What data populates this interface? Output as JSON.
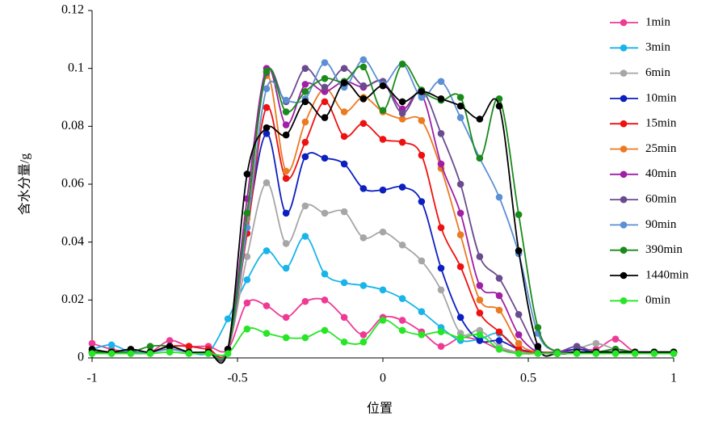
{
  "chart_data": {
    "type": "line",
    "xlabel": "位置",
    "ylabel": "含水分量/g",
    "xlim": [
      -1,
      1
    ],
    "xticks": [
      -1,
      -0.5,
      0,
      0.5,
      1
    ],
    "ylim": [
      0,
      0.12
    ],
    "yticks": [
      0,
      0.02,
      0.04,
      0.06,
      0.08,
      0.1,
      0.12
    ],
    "grid": false,
    "legend": "right",
    "smooth": true,
    "markers": true,
    "x": [
      -1,
      -0.933,
      -0.867,
      -0.8,
      -0.733,
      -0.667,
      -0.6,
      -0.533,
      -0.467,
      -0.4,
      -0.333,
      -0.267,
      -0.2,
      -0.133,
      -0.067,
      0,
      0.067,
      0.133,
      0.2,
      0.267,
      0.333,
      0.4,
      0.467,
      0.533,
      0.6,
      0.667,
      0.733,
      0.8,
      0.867,
      0.933,
      1
    ],
    "series": [
      {
        "name": "1min",
        "color": "#ee3a95",
        "values": [
          0.005,
          0.003,
          0.002,
          0.002,
          0.006,
          0.004,
          0.004,
          0.003,
          0.019,
          0.018,
          0.014,
          0.0195,
          0.02,
          0.014,
          0.008,
          0.014,
          0.013,
          0.009,
          0.004,
          0.007,
          0.006,
          0.003,
          0.002,
          0.002,
          0.002,
          0.003,
          0.003,
          0.0065,
          0.002,
          0.002,
          0.002
        ]
      },
      {
        "name": "3min",
        "color": "#18b4ea",
        "values": [
          0.003,
          0.0045,
          0.002,
          0.002,
          0.003,
          0.002,
          0.002,
          0.0135,
          0.027,
          0.037,
          0.031,
          0.042,
          0.029,
          0.026,
          0.025,
          0.0235,
          0.0205,
          0.016,
          0.0105,
          0.006,
          0.0065,
          0.0085,
          0.003,
          0.002,
          0.002,
          0.002,
          0.002,
          0.002,
          0.002,
          0.002,
          0.0015
        ]
      },
      {
        "name": "6min",
        "color": "#a6a6a6",
        "values": [
          0.002,
          0.002,
          0.002,
          0.002,
          0.003,
          0.002,
          0.002,
          0.003,
          0.035,
          0.0605,
          0.0395,
          0.0525,
          0.05,
          0.0505,
          0.0415,
          0.0435,
          0.039,
          0.0335,
          0.0235,
          0.0085,
          0.0095,
          0.004,
          0.002,
          0.002,
          0.002,
          0.003,
          0.005,
          0.003,
          0.002,
          0.002,
          0.002
        ]
      },
      {
        "name": "10min",
        "color": "#0c1fc0",
        "values": [
          0.002,
          0.002,
          0.002,
          0.002,
          0.003,
          0.002,
          0.002,
          0.003,
          0.045,
          0.0775,
          0.05,
          0.0695,
          0.069,
          0.067,
          0.0585,
          0.058,
          0.059,
          0.054,
          0.031,
          0.014,
          0.006,
          0.006,
          0.003,
          0.002,
          0.002,
          0.003,
          0.002,
          0.002,
          0.002,
          0.002,
          0.002
        ]
      },
      {
        "name": "15min",
        "color": "#ee1111",
        "values": [
          0.002,
          0.002,
          0.002,
          0.002,
          0.004,
          0.004,
          0.003,
          0.003,
          0.043,
          0.0865,
          0.062,
          0.0745,
          0.0885,
          0.0765,
          0.081,
          0.0755,
          0.0745,
          0.07,
          0.045,
          0.0315,
          0.0155,
          0.009,
          0.003,
          0.002,
          0.002,
          0.002,
          0.002,
          0.002,
          0.002,
          0.002,
          0.002
        ]
      },
      {
        "name": "25min",
        "color": "#eb7a22",
        "values": [
          0.002,
          0.002,
          0.002,
          0.002,
          0.003,
          0.002,
          0.002,
          0.003,
          0.048,
          0.0975,
          0.0645,
          0.0815,
          0.093,
          0.085,
          0.09,
          0.085,
          0.0825,
          0.082,
          0.0655,
          0.0425,
          0.02,
          0.0165,
          0.005,
          0.002,
          0.002,
          0.002,
          0.002,
          0.002,
          0.002,
          0.002,
          0.002
        ]
      },
      {
        "name": "40min",
        "color": "#a01fa5",
        "values": [
          0.002,
          0.002,
          0.002,
          0.002,
          0.003,
          0.002,
          0.002,
          0.003,
          0.055,
          0.1,
          0.0805,
          0.0945,
          0.092,
          0.0955,
          0.0935,
          0.0955,
          0.086,
          0.091,
          0.067,
          0.05,
          0.025,
          0.0215,
          0.008,
          0.002,
          0.002,
          0.002,
          0.002,
          0.002,
          0.002,
          0.002,
          0.002
        ]
      },
      {
        "name": "60min",
        "color": "#6b4b8f",
        "values": [
          0.002,
          0.002,
          0.002,
          0.002,
          0.003,
          0.002,
          0.002,
          0.003,
          0.05,
          0.0985,
          0.0885,
          0.1,
          0.0935,
          0.1,
          0.094,
          0.0955,
          0.0845,
          0.0925,
          0.0775,
          0.06,
          0.035,
          0.0275,
          0.015,
          0.003,
          0.002,
          0.004,
          0.002,
          0.003,
          0.002,
          0.002,
          0.002
        ]
      },
      {
        "name": "90min",
        "color": "#5b8fd6",
        "values": [
          0.002,
          0.002,
          0.002,
          0.002,
          0.003,
          0.002,
          0.002,
          0.003,
          0.045,
          0.093,
          0.089,
          0.0895,
          0.102,
          0.0935,
          0.103,
          0.0945,
          0.1015,
          0.09,
          0.0955,
          0.083,
          0.069,
          0.0555,
          0.036,
          0.0085,
          0.002,
          0.002,
          0.002,
          0.002,
          0.002,
          0.002,
          0.002
        ]
      },
      {
        "name": "390min",
        "color": "#1a8a1a",
        "values": [
          0.002,
          0.002,
          0.002,
          0.004,
          0.004,
          0.002,
          0.002,
          0.003,
          0.05,
          0.099,
          0.085,
          0.092,
          0.0965,
          0.0955,
          0.1005,
          0.0855,
          0.1015,
          0.0925,
          0.089,
          0.09,
          0.069,
          0.0895,
          0.0495,
          0.0105,
          0.002,
          0.002,
          0.002,
          0.003,
          0.002,
          0.002,
          0.002
        ]
      },
      {
        "name": "1440min",
        "color": "#000000",
        "values": [
          0.003,
          0.002,
          0.003,
          0.002,
          0.004,
          0.002,
          0.002,
          0.003,
          0.0635,
          0.0795,
          0.077,
          0.0885,
          0.083,
          0.095,
          0.0895,
          0.094,
          0.0885,
          0.092,
          0.0895,
          0.087,
          0.0825,
          0.087,
          0.037,
          0.004,
          0.0015,
          0.002,
          0.002,
          0.002,
          0.002,
          0.002,
          0.002
        ]
      },
      {
        "name": "0min",
        "color": "#26e626",
        "values": [
          0.0015,
          0.0015,
          0.0015,
          0.0015,
          0.002,
          0.0015,
          0.0015,
          0.0015,
          0.01,
          0.0085,
          0.007,
          0.007,
          0.0095,
          0.0055,
          0.0055,
          0.013,
          0.0095,
          0.008,
          0.009,
          0.007,
          0.008,
          0.003,
          0.0015,
          0.0015,
          0.0015,
          0.0015,
          0.0015,
          0.0015,
          0.0015,
          0.0015,
          0.0015
        ]
      }
    ]
  }
}
